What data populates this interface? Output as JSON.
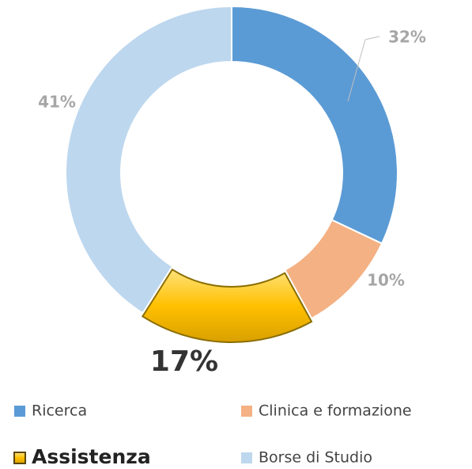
{
  "chart_data": {
    "type": "donut",
    "categories": [
      "Ricerca",
      "Clinica e formazione",
      "Assistenza",
      "Borse di Studio"
    ],
    "values": [
      32,
      10,
      17,
      41
    ],
    "value_labels": [
      "32%",
      "10%",
      "17%",
      "41%"
    ],
    "colors": [
      "#5b9bd5",
      "#f4b183",
      "#ffc000",
      "#bdd7ee"
    ],
    "highlight": "Assistenza"
  }
}
